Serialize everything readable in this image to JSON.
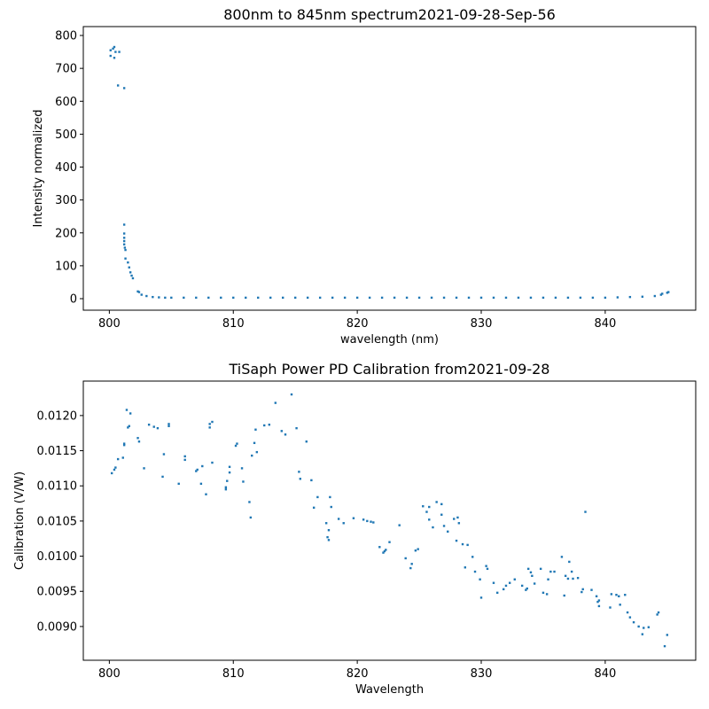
{
  "chart_data": [
    {
      "type": "scatter",
      "title": "800nm to 845nm spectrum2021-09-28-Sep-56",
      "x_label": "wavelength (nm)",
      "y_label": "Intensity normalized",
      "color": "#1f77b4",
      "x": [
        800.1,
        800.1,
        800.3,
        800.4,
        800.4,
        800.5,
        800.8,
        800.7,
        801.2,
        801.2,
        801.2,
        801.2,
        801.2,
        801.2,
        801.25,
        801.3,
        801.3,
        801.5,
        801.6,
        801.7,
        801.8,
        801.9,
        802.3,
        802.4,
        802.6,
        803,
        803.5,
        804,
        804.5,
        805,
        806,
        807,
        808,
        809,
        810,
        811,
        812,
        813,
        814,
        815,
        816,
        817,
        818,
        819,
        820,
        821,
        822,
        823,
        824,
        825,
        826,
        827,
        828,
        829,
        830,
        831,
        832,
        833,
        834,
        835,
        836,
        837,
        838,
        839,
        840,
        841,
        842,
        843,
        844,
        844.5,
        844.6,
        845,
        845.1
      ],
      "values": [
        755,
        738,
        760,
        765,
        732,
        750,
        750,
        648,
        640,
        225,
        198,
        185,
        175,
        165,
        155,
        148,
        122,
        110,
        95,
        80,
        70,
        62,
        22,
        20,
        12,
        8,
        5,
        4,
        3,
        3,
        3,
        3,
        3,
        3,
        3,
        3,
        3,
        3,
        3,
        3,
        3,
        3,
        3,
        3,
        3,
        3,
        3,
        3,
        3,
        3,
        3,
        3,
        3,
        3,
        3,
        3,
        3,
        3,
        3,
        3,
        3,
        3,
        3,
        3,
        3,
        4,
        5,
        6,
        8,
        12,
        15,
        18,
        20
      ],
      "xlim": [
        797.9,
        847.3
      ],
      "ylim": [
        -35,
        827
      ],
      "xticks": [
        800,
        810,
        820,
        830,
        840
      ],
      "yticks": [
        0,
        100,
        200,
        300,
        400,
        500,
        600,
        700,
        800
      ]
    },
    {
      "type": "scatter",
      "title": "TiSaph Power PD Calibration from2021-09-28",
      "x_label": "Wavelength",
      "y_label": "Calibration (V/W)",
      "color": "#1f77b4",
      "x": [
        800.2,
        800.4,
        800.5,
        800.7,
        801.1,
        801.2,
        801.2,
        801.4,
        801.5,
        801.6,
        801.7,
        802.3,
        802.4,
        802.8,
        803.2,
        803.6,
        803.9,
        804.3,
        804.4,
        804.8,
        804.8,
        805.6,
        806.1,
        806.1,
        807,
        807.1,
        807.4,
        807.5,
        807.8,
        808.1,
        808.1,
        808.3,
        808.3,
        809.4,
        809.4,
        809.5,
        809.7,
        809.7,
        810.2,
        810.3,
        810.7,
        810.8,
        811.3,
        811.4,
        811.5,
        811.7,
        811.8,
        811.9,
        812.5,
        812.9,
        813.4,
        813.9,
        814.2,
        814.7,
        815.1,
        815.3,
        815.4,
        815.9,
        816.3,
        816.5,
        816.8,
        817.5,
        817.6,
        817.7,
        817.7,
        817.8,
        817.9,
        818.5,
        818.9,
        819.7,
        820.5,
        820.8,
        821.1,
        821.3,
        821.8,
        822.1,
        822.2,
        822.3,
        822.6,
        823.4,
        823.9,
        824.3,
        824.4,
        824.7,
        824.9,
        825.3,
        825.6,
        825.8,
        825.8,
        826.1,
        826.4,
        826.8,
        826.8,
        827,
        827.3,
        827.8,
        828,
        828.1,
        828.2,
        828.5,
        828.7,
        828.9,
        829.3,
        829.5,
        829.9,
        830,
        830.4,
        830.5,
        831,
        831.3,
        831.8,
        832,
        832.3,
        832.7,
        833.3,
        833.6,
        833.7,
        833.8,
        834,
        834.1,
        834.3,
        834.8,
        835,
        835.3,
        835.4,
        835.6,
        835.9,
        836.5,
        836.7,
        836.8,
        837,
        837.1,
        837.3,
        837.4,
        837.8,
        838.1,
        838.2,
        838.4,
        838.9,
        839.3,
        839.4,
        839.5,
        839.5,
        840.4,
        840.5,
        840.9,
        841.1,
        841.2,
        841.6,
        841.8,
        842,
        842.3,
        842.7,
        843,
        843.1,
        843.5,
        844.2,
        844.3,
        844.8,
        845
      ],
      "values": [
        0.01118,
        0.01123,
        0.01126,
        0.01138,
        0.0114,
        0.0116,
        0.01158,
        0.01208,
        0.01183,
        0.01185,
        0.01203,
        0.01168,
        0.01163,
        0.01125,
        0.01187,
        0.01184,
        0.01182,
        0.01113,
        0.01145,
        0.01185,
        0.01188,
        0.01103,
        0.01142,
        0.01137,
        0.01121,
        0.01123,
        0.01103,
        0.01128,
        0.01088,
        0.01188,
        0.01183,
        0.01191,
        0.01133,
        0.01095,
        0.01098,
        0.01107,
        0.01119,
        0.01127,
        0.01157,
        0.0116,
        0.01125,
        0.01106,
        0.01077,
        0.01055,
        0.01143,
        0.01161,
        0.0118,
        0.01148,
        0.01186,
        0.01187,
        0.01218,
        0.01178,
        0.01173,
        0.0123,
        0.01182,
        0.0112,
        0.0111,
        0.01163,
        0.01108,
        0.01069,
        0.01084,
        0.01047,
        0.01027,
        0.01023,
        0.01037,
        0.01084,
        0.0107,
        0.01053,
        0.01047,
        0.01054,
        0.01052,
        0.0105,
        0.01049,
        0.01048,
        0.01013,
        0.01005,
        0.01007,
        0.01009,
        0.0102,
        0.01044,
        0.00997,
        0.00983,
        0.00989,
        0.01008,
        0.0101,
        0.01071,
        0.01063,
        0.0107,
        0.01052,
        0.01041,
        0.01077,
        0.01074,
        0.01059,
        0.01043,
        0.01035,
        0.01053,
        0.01022,
        0.01055,
        0.01047,
        0.01017,
        0.00984,
        0.01016,
        0.00999,
        0.00978,
        0.00967,
        0.00941,
        0.00986,
        0.00982,
        0.00962,
        0.00948,
        0.00953,
        0.00958,
        0.00962,
        0.00967,
        0.00958,
        0.00952,
        0.00954,
        0.00982,
        0.00977,
        0.00972,
        0.00961,
        0.00982,
        0.00948,
        0.00946,
        0.00967,
        0.00978,
        0.00978,
        0.00999,
        0.00944,
        0.00972,
        0.00968,
        0.00992,
        0.00978,
        0.00968,
        0.00969,
        0.00949,
        0.00953,
        0.01063,
        0.00952,
        0.00943,
        0.00935,
        0.00929,
        0.00937,
        0.00927,
        0.00946,
        0.00945,
        0.00943,
        0.00931,
        0.00945,
        0.0092,
        0.00913,
        0.00906,
        0.009,
        0.00889,
        0.00898,
        0.00899,
        0.00917,
        0.0092,
        0.00872,
        0.00888
      ],
      "xlim": [
        797.9,
        847.3
      ],
      "ylim": [
        0.00852,
        0.01249
      ],
      "xticks": [
        800,
        810,
        820,
        830,
        840
      ],
      "yticks": [
        {
          "value": 0.009,
          "label": "0.0090"
        },
        0.0095,
        {
          "value": 0.01,
          "label": "0.0100"
        },
        0.0105,
        {
          "value": 0.011,
          "label": "0.0110"
        },
        0.0115,
        {
          "value": 0.012,
          "label": "0.0120"
        }
      ]
    }
  ]
}
